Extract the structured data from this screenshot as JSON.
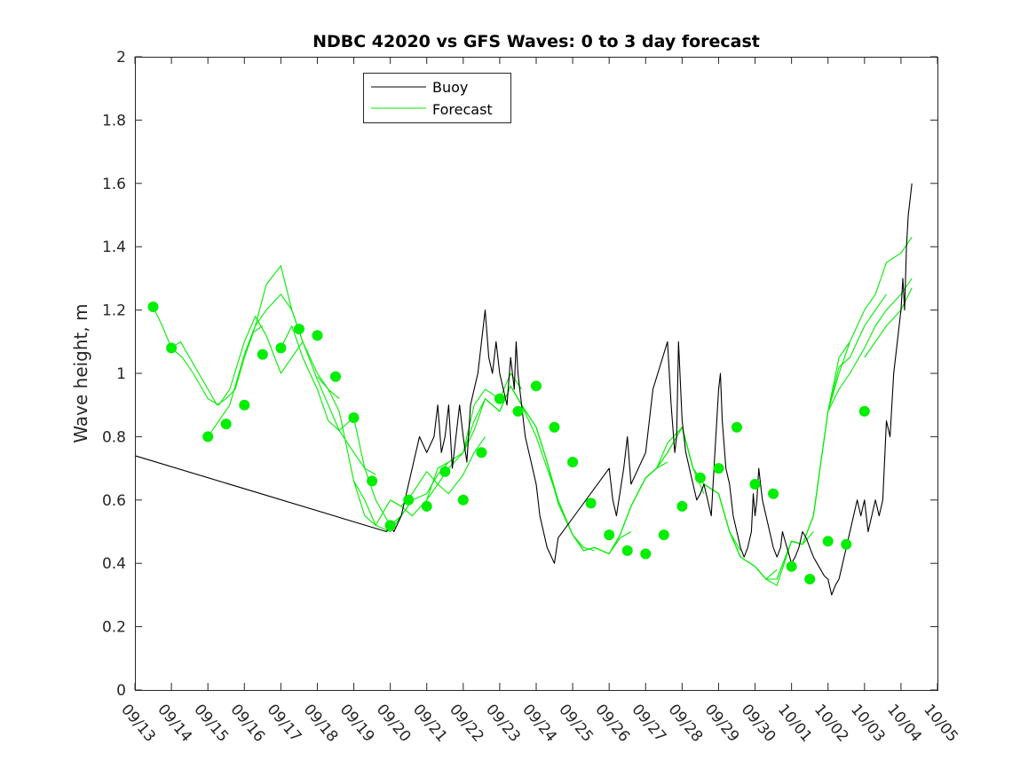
{
  "chart_data": {
    "type": "line",
    "title": "NDBC 42020 vs GFS Waves: 0 to 3 day forecast",
    "xlabel": "",
    "ylabel": "Wave height, m",
    "xlim": [
      0,
      22
    ],
    "ylim": [
      0,
      2
    ],
    "yticks": [
      0,
      0.2,
      0.4,
      0.6,
      0.8,
      1,
      1.2,
      1.4,
      1.6,
      1.8,
      2
    ],
    "ytick_labels": [
      "0",
      "0.2",
      "0.4",
      "0.6",
      "0.8",
      "1",
      "1.2",
      "1.4",
      "1.6",
      "1.8",
      "2"
    ],
    "xtick_labels": [
      "09/13",
      "09/14",
      "09/15",
      "09/16",
      "09/17",
      "09/18",
      "09/19",
      "09/20",
      "09/21",
      "09/22",
      "09/23",
      "09/24",
      "09/25",
      "09/26",
      "09/27",
      "09/28",
      "09/29",
      "09/30",
      "10/01",
      "10/02",
      "10/03",
      "10/04",
      "10/05"
    ],
    "grid": false,
    "legend": {
      "location": "top-center",
      "entries": [
        "Buoy",
        "Forecast"
      ]
    },
    "colors": {
      "buoy": "#000000",
      "forecast": "#00ee00",
      "axis": "#262626"
    },
    "series": [
      {
        "name": "Buoy",
        "x": [
          0,
          6.9,
          7.0,
          7.1,
          7.3,
          7.4,
          7.5,
          7.6,
          7.7,
          7.8,
          8.0,
          8.2,
          8.3,
          8.4,
          8.5,
          8.6,
          8.7,
          8.8,
          8.9,
          9.0,
          9.1,
          9.2,
          9.3,
          9.4,
          9.5,
          9.6,
          9.7,
          9.8,
          9.9,
          10.0,
          10.1,
          10.2,
          10.3,
          10.4,
          10.45,
          10.5,
          10.55,
          10.6,
          10.65,
          10.7,
          10.8,
          10.9,
          11.0,
          11.05,
          11.1,
          11.2,
          11.3,
          11.5,
          11.6,
          13.0,
          13.1,
          13.2,
          13.4,
          13.5,
          13.6,
          14.0,
          14.2,
          14.6,
          14.7,
          14.8,
          14.85,
          14.9,
          15.0,
          15.1,
          15.2,
          15.3,
          15.4,
          15.5,
          15.6,
          15.7,
          15.8,
          15.9,
          16.0,
          16.05,
          16.1,
          16.2,
          16.3,
          16.4,
          16.5,
          16.6,
          16.7,
          16.8,
          16.9,
          16.95,
          17.0,
          17.05,
          17.1,
          17.2,
          17.3,
          17.4,
          17.5,
          17.6,
          17.7,
          17.75,
          17.8,
          17.9,
          18.0,
          18.1,
          18.2,
          18.3,
          18.4,
          18.5,
          18.6,
          18.7,
          18.8,
          18.9,
          19.0,
          19.1,
          19.2,
          19.3,
          19.4,
          19.5,
          19.6,
          19.7,
          19.8,
          19.9,
          20.0,
          20.1,
          20.2,
          20.3,
          20.4,
          20.5,
          20.6,
          20.7,
          20.8,
          20.9,
          21.0,
          21.05,
          21.1,
          21.15,
          21.2,
          21.25,
          21.3
        ],
        "y": [
          0.74,
          0.5,
          0.52,
          0.5,
          0.55,
          0.6,
          0.65,
          0.7,
          0.75,
          0.8,
          0.75,
          0.8,
          0.9,
          0.75,
          0.8,
          0.9,
          0.7,
          0.8,
          0.9,
          0.8,
          0.72,
          0.9,
          0.95,
          1.0,
          1.1,
          1.2,
          1.05,
          1.0,
          1.1,
          1.0,
          0.95,
          0.9,
          1.05,
          0.95,
          1.1,
          1.0,
          0.95,
          0.9,
          0.85,
          0.8,
          0.75,
          0.7,
          0.65,
          0.6,
          0.55,
          0.5,
          0.45,
          0.4,
          0.48,
          0.7,
          0.6,
          0.55,
          0.7,
          0.8,
          0.65,
          0.75,
          0.95,
          1.1,
          0.9,
          0.75,
          0.8,
          1.1,
          0.85,
          0.75,
          0.7,
          0.65,
          0.6,
          0.62,
          0.65,
          0.6,
          0.55,
          0.75,
          0.95,
          1.0,
          0.85,
          0.7,
          0.65,
          0.55,
          0.5,
          0.45,
          0.42,
          0.45,
          0.5,
          0.62,
          0.55,
          0.6,
          0.7,
          0.6,
          0.55,
          0.5,
          0.45,
          0.42,
          0.45,
          0.5,
          0.48,
          0.44,
          0.4,
          0.42,
          0.45,
          0.5,
          0.48,
          0.45,
          0.42,
          0.4,
          0.38,
          0.36,
          0.35,
          0.3,
          0.33,
          0.35,
          0.4,
          0.45,
          0.5,
          0.55,
          0.6,
          0.55,
          0.6,
          0.5,
          0.55,
          0.6,
          0.55,
          0.6,
          0.85,
          0.8,
          1.0,
          1.1,
          1.2,
          1.3,
          1.2,
          1.4,
          1.5,
          1.55,
          1.6
        ]
      },
      {
        "name": "Forecast",
        "x": [
          0.5,
          0.75,
          1.0,
          1.25,
          1.5,
          1.75,
          2.0,
          2.25,
          2.5,
          2.75,
          3.0,
          3.25,
          3.5
        ],
        "y": [
          1.21,
          1.15,
          1.08,
          1.1,
          1.05,
          1.0,
          0.95,
          0.9,
          0.92,
          0.95,
          1.05,
          1.13,
          1.15
        ]
      },
      {
        "name": "Forecast",
        "x": [
          1.0,
          1.3,
          1.6,
          2.0,
          2.3,
          2.6,
          3.0,
          3.3,
          3.6,
          4.0,
          4.3,
          4.6
        ],
        "y": [
          1.08,
          1.05,
          1.0,
          0.92,
          0.9,
          0.95,
          1.1,
          1.18,
          1.12,
          1.0,
          1.05,
          1.1
        ]
      },
      {
        "name": "Forecast",
        "x": [
          2.0,
          2.3,
          2.6,
          3.0,
          3.3,
          3.6,
          4.0,
          4.3,
          4.6,
          5.0,
          5.3,
          5.6
        ],
        "y": [
          0.8,
          0.85,
          0.9,
          1.06,
          1.15,
          1.2,
          1.25,
          1.2,
          1.1,
          1.0,
          0.95,
          0.92
        ]
      },
      {
        "name": "Forecast",
        "x": [
          3.0,
          3.3,
          3.6,
          4.0,
          4.3,
          4.6,
          5.0,
          5.3,
          5.6,
          6.0,
          6.3,
          6.6
        ],
        "y": [
          1.06,
          1.15,
          1.28,
          1.34,
          1.2,
          1.1,
          0.98,
          0.9,
          0.82,
          0.75,
          0.7,
          0.68
        ]
      },
      {
        "name": "Forecast",
        "x": [
          4.0,
          4.3,
          4.6,
          5.0,
          5.3,
          5.6,
          6.0,
          6.3,
          6.6,
          7.0,
          7.3,
          7.6
        ],
        "y": [
          1.08,
          1.15,
          1.05,
          0.95,
          0.85,
          0.82,
          0.86,
          0.7,
          0.6,
          0.52,
          0.55,
          0.6
        ]
      },
      {
        "name": "Forecast",
        "x": [
          5.0,
          5.3,
          5.6,
          6.0,
          6.3,
          6.6,
          7.0,
          7.3,
          7.6,
          8.0,
          8.3,
          8.6
        ],
        "y": [
          0.99,
          0.95,
          0.88,
          0.66,
          0.6,
          0.52,
          0.5,
          0.55,
          0.6,
          0.62,
          0.68,
          0.72
        ]
      },
      {
        "name": "Forecast",
        "x": [
          6.0,
          6.3,
          6.6,
          7.0,
          7.3,
          7.6,
          8.0,
          8.3,
          8.6,
          9.0,
          9.3,
          9.6
        ],
        "y": [
          0.66,
          0.55,
          0.52,
          0.6,
          0.58,
          0.62,
          0.69,
          0.65,
          0.62,
          0.68,
          0.75,
          0.8
        ]
      },
      {
        "name": "Forecast",
        "x": [
          7.0,
          7.3,
          7.6,
          8.0,
          8.3,
          8.6,
          9.0,
          9.3,
          9.6,
          10.0,
          10.3,
          10.6
        ],
        "y": [
          0.6,
          0.58,
          0.55,
          0.6,
          0.7,
          0.72,
          0.75,
          0.9,
          0.95,
          0.92,
          1.0,
          0.95
        ]
      },
      {
        "name": "Forecast",
        "x": [
          8.0,
          8.3,
          8.6,
          9.0,
          9.3,
          9.6,
          10.0,
          10.3,
          10.6,
          11.0,
          11.3,
          11.6
        ],
        "y": [
          0.6,
          0.65,
          0.7,
          0.75,
          0.85,
          0.92,
          0.88,
          0.96,
          0.9,
          0.8,
          0.7,
          0.6
        ]
      },
      {
        "name": "Forecast",
        "x": [
          9.0,
          9.3,
          9.6,
          10.0,
          10.3,
          10.6,
          11.0,
          11.3,
          11.6,
          12.0,
          12.3,
          12.6
        ],
        "y": [
          0.75,
          0.82,
          0.92,
          0.88,
          0.96,
          0.9,
          0.83,
          0.72,
          0.6,
          0.49,
          0.45,
          0.44
        ]
      },
      {
        "name": "Forecast",
        "x": [
          10.0,
          10.3,
          10.6,
          11.0,
          11.3,
          11.6,
          12.0,
          12.3,
          12.6,
          13.0,
          13.3,
          13.6
        ],
        "y": [
          0.88,
          0.96,
          0.9,
          0.83,
          0.72,
          0.59,
          0.49,
          0.44,
          0.45,
          0.43,
          0.48,
          0.5
        ]
      },
      {
        "name": "Forecast",
        "x": [
          11.0,
          11.3,
          11.6,
          12.0,
          12.3,
          12.6,
          13.0,
          13.3,
          13.6,
          14.0,
          14.3,
          14.6
        ],
        "y": [
          0.83,
          0.72,
          0.59,
          0.49,
          0.44,
          0.45,
          0.43,
          0.49,
          0.58,
          0.67,
          0.7,
          0.72
        ]
      },
      {
        "name": "Forecast",
        "x": [
          12.0,
          12.3,
          12.6,
          13.0,
          13.3,
          13.6,
          14.0,
          14.3,
          14.6,
          15.0,
          15.3,
          15.6
        ],
        "y": [
          0.49,
          0.44,
          0.45,
          0.43,
          0.49,
          0.58,
          0.67,
          0.7,
          0.75,
          0.83,
          0.7,
          0.62
        ]
      },
      {
        "name": "Forecast",
        "x": [
          13.0,
          13.3,
          13.6,
          14.0,
          14.3,
          14.6,
          15.0,
          15.3,
          15.6,
          16.0,
          16.3,
          16.6
        ],
        "y": [
          0.43,
          0.49,
          0.58,
          0.67,
          0.7,
          0.78,
          0.83,
          0.7,
          0.65,
          0.62,
          0.5,
          0.44
        ]
      },
      {
        "name": "Forecast",
        "x": [
          14.0,
          14.3,
          14.6,
          15.0,
          15.3,
          15.6,
          16.0,
          16.3,
          16.6,
          17.0,
          17.3,
          17.6
        ],
        "y": [
          0.67,
          0.7,
          0.75,
          0.83,
          0.7,
          0.65,
          0.62,
          0.5,
          0.42,
          0.39,
          0.35,
          0.38
        ]
      },
      {
        "name": "Forecast",
        "x": [
          15.0,
          15.3,
          15.6,
          16.0,
          16.3,
          16.6,
          17.0,
          17.3,
          17.6,
          18.0,
          18.3,
          18.6
        ],
        "y": [
          0.83,
          0.7,
          0.65,
          0.62,
          0.5,
          0.42,
          0.39,
          0.35,
          0.35,
          0.47,
          0.46,
          0.5
        ]
      },
      {
        "name": "Forecast",
        "x": [
          16.0,
          16.3,
          16.6,
          17.0,
          17.3,
          17.6,
          18.0,
          18.3,
          18.6,
          19.0,
          19.3,
          19.6
        ],
        "y": [
          0.62,
          0.5,
          0.42,
          0.39,
          0.35,
          0.33,
          0.47,
          0.46,
          0.55,
          0.88,
          1.0,
          1.1
        ]
      },
      {
        "name": "Forecast",
        "x": [
          17.0,
          17.3,
          17.6,
          18.0,
          18.3,
          18.6,
          19.0,
          19.3,
          19.6,
          20.0,
          20.3,
          20.6
        ],
        "y": [
          0.39,
          0.35,
          0.35,
          0.47,
          0.46,
          0.55,
          0.88,
          1.02,
          1.05,
          1.15,
          1.2,
          1.25
        ]
      },
      {
        "name": "Forecast",
        "x": [
          18.0,
          18.3,
          18.6,
          19.0,
          19.3,
          19.6,
          20.0,
          20.3,
          20.6,
          21.0,
          21.3
        ],
        "y": [
          0.47,
          0.46,
          0.55,
          0.88,
          1.05,
          1.1,
          1.2,
          1.25,
          1.35,
          1.38,
          1.43
        ]
      },
      {
        "name": "Forecast",
        "x": [
          19.0,
          19.3,
          19.6,
          20.0,
          20.3,
          20.6,
          21.0,
          21.3
        ],
        "y": [
          0.88,
          0.95,
          1.0,
          1.08,
          1.15,
          1.2,
          1.25,
          1.3
        ]
      },
      {
        "name": "Forecast",
        "x": [
          20.0,
          20.3,
          20.6,
          21.0,
          21.3
        ],
        "y": [
          1.05,
          1.1,
          1.15,
          1.2,
          1.27
        ]
      }
    ],
    "markers": {
      "name": "Forecast analysis points",
      "x": [
        0.5,
        1,
        2,
        2.5,
        3,
        3.5,
        4,
        4.5,
        5,
        5.5,
        6,
        6.5,
        7,
        7.5,
        8,
        8.5,
        9,
        9.5,
        10,
        10.5,
        11,
        11.5,
        12,
        12.5,
        13,
        13.5,
        14,
        14.5,
        15,
        15.5,
        16,
        16.5,
        17,
        17.5,
        18,
        18.5,
        19,
        19.5,
        20
      ],
      "y": [
        1.21,
        1.08,
        0.8,
        0.84,
        0.9,
        1.06,
        1.08,
        1.14,
        1.12,
        0.99,
        0.86,
        0.66,
        0.52,
        0.6,
        0.58,
        0.69,
        0.6,
        0.75,
        0.92,
        0.88,
        0.96,
        0.83,
        0.72,
        0.59,
        0.49,
        0.44,
        0.43,
        0.49,
        0.58,
        0.67,
        0.7,
        0.83,
        0.65,
        0.62,
        0.39,
        0.35,
        0.47,
        0.46,
        0.88
      ]
    }
  }
}
